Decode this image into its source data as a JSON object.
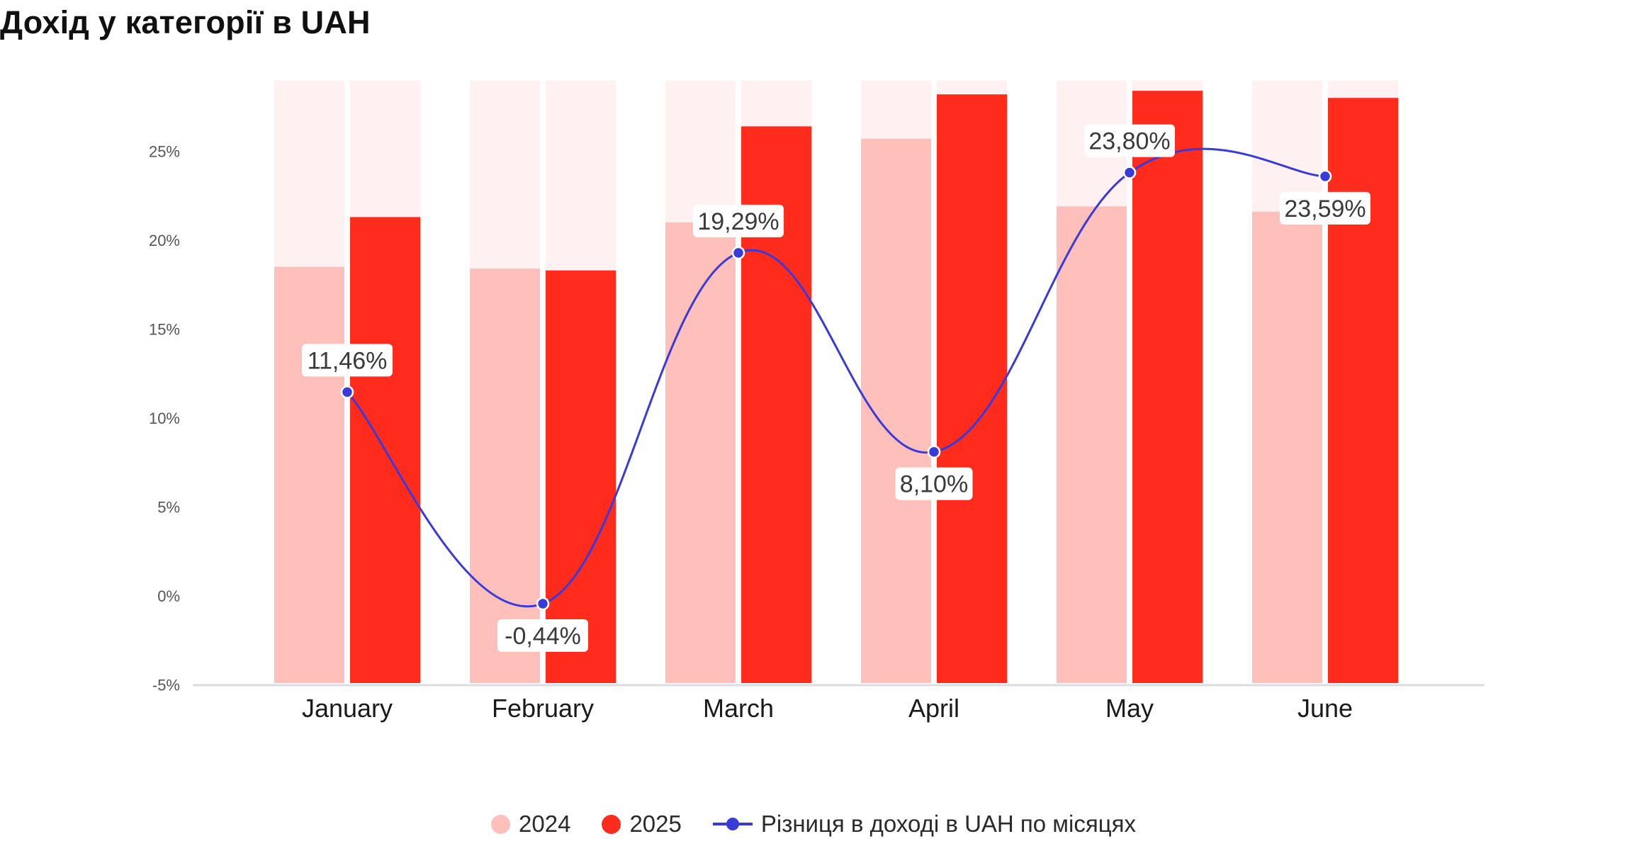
{
  "title": "Дохід у категорії в UAH",
  "colors": {
    "bg_bar": "#fff1f1",
    "series_2024": "#ffbfba",
    "series_2025": "#ff2b1c",
    "line": "#3a3ad8"
  },
  "legend": {
    "items": [
      {
        "label": "2024",
        "marker": "circle"
      },
      {
        "label": "2025",
        "marker": "circle"
      },
      {
        "label": "Різниця в доході в UAH по місяцях",
        "marker": "line-dot"
      }
    ]
  },
  "chart_data": {
    "type": "bar",
    "title": "Дохід у категорії в UAH",
    "categories": [
      "January",
      "February",
      "March",
      "April",
      "May",
      "June"
    ],
    "series": [
      {
        "name": "2024",
        "type": "bar",
        "values": [
          18.5,
          18.4,
          21.0,
          25.7,
          21.9,
          21.6
        ]
      },
      {
        "name": "2025",
        "type": "bar",
        "values": [
          21.3,
          18.3,
          26.4,
          28.2,
          28.4,
          28.0
        ]
      },
      {
        "name": "Різниця в доході в UAH по місяцях",
        "type": "line",
        "values": [
          11.46,
          -0.44,
          19.29,
          8.1,
          23.8,
          23.59
        ],
        "labels": [
          "11,46%",
          "-0,44%",
          "19,29%",
          "8,10%",
          "23,80%",
          "23,59%"
        ]
      }
    ],
    "background_bar_max": 28.9,
    "ylim": [
      -5,
      30
    ],
    "yticks": [
      -5,
      0,
      5,
      10,
      15,
      20,
      25
    ],
    "ytick_labels": [
      "-5%",
      "0%",
      "5%",
      "10%",
      "15%",
      "20%",
      "25%"
    ],
    "grid": false,
    "legend_position": "bottom"
  }
}
